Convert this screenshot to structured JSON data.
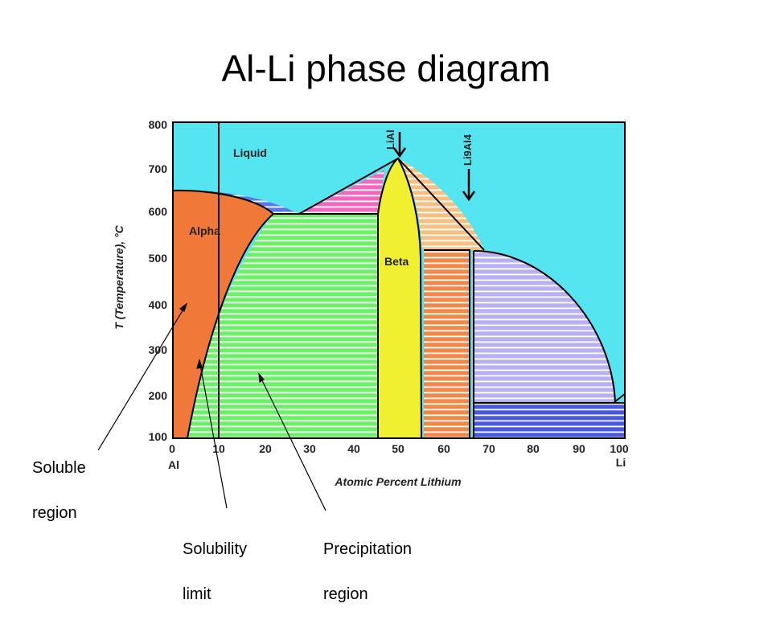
{
  "title": "Al-Li phase diagram",
  "diagram": {
    "y_axis_label": "T (Temperature), °C",
    "y_ticks": [
      "800",
      "700",
      "600",
      "500",
      "400",
      "300",
      "200",
      "100"
    ],
    "x_axis_label": "Atomic Percent Lithium",
    "x_ticks": [
      "0",
      "10",
      "20",
      "30",
      "40",
      "50",
      "60",
      "70",
      "80",
      "90",
      "100"
    ],
    "x_end_labels": {
      "left": "Al",
      "right": "Li"
    },
    "region_labels": {
      "liquid": "Liquid",
      "alpha": "Alpha",
      "beta": "Beta"
    },
    "compound_labels": {
      "lial": "LiAl",
      "li9al4": "Li9Al4"
    },
    "colors": {
      "liquid": "#55e5f1",
      "alpha": "#f07838",
      "beta": "#f0f030",
      "two_phase_green": "#6cf068",
      "pink": "#f068c0",
      "peach": "#f8c080",
      "orange_hatch": "#f08848",
      "lavender": "#c0b8f0",
      "blue": "#4858e0"
    }
  },
  "annotations": {
    "soluble_line1": "Soluble",
    "soluble_line2": "region",
    "solubility_line1": "Solubility",
    "solubility_line2": "limit",
    "precip_line1": "Precipitation",
    "precip_line2": "region"
  }
}
